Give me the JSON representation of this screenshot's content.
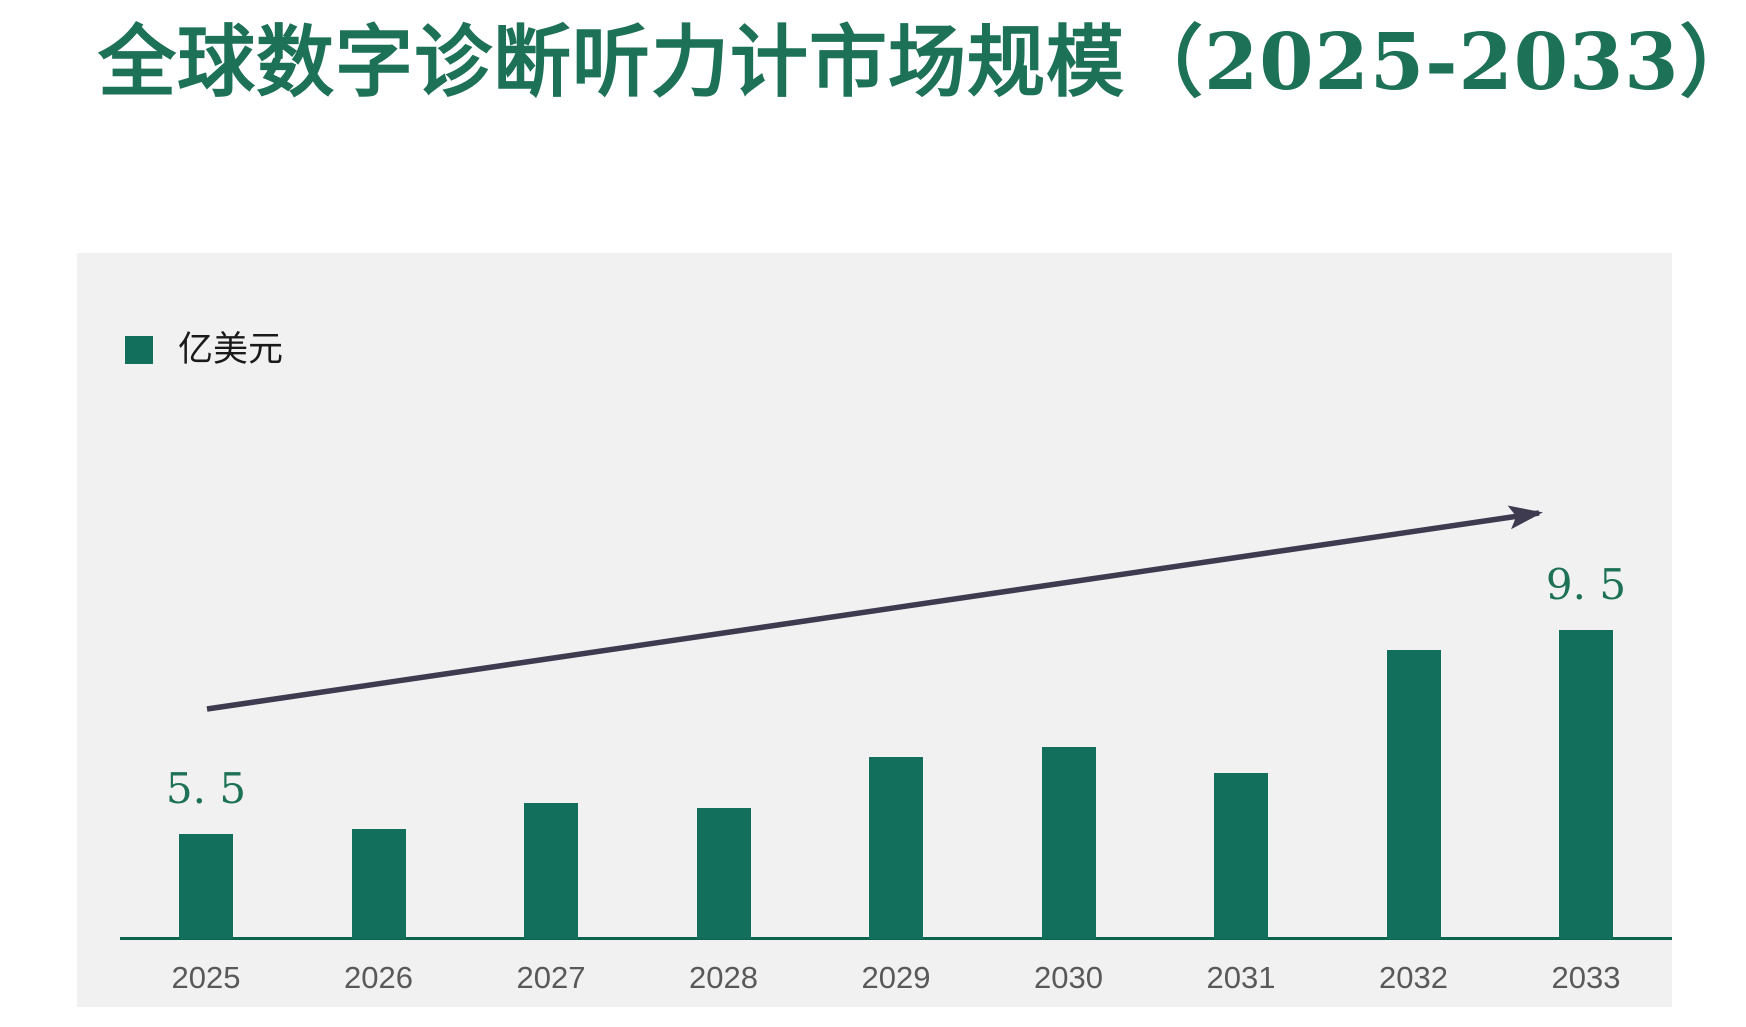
{
  "title": "全球数字诊断听力计市场规模（2025-2033）",
  "legend": {
    "label": "亿美元",
    "swatch_color": "#116f5b"
  },
  "colors": {
    "title_green": "#1d7157",
    "bar_green": "#116f5b",
    "axis_green": "#0b654e",
    "arrow": "#3e3b50",
    "plot_background": "#f1f1f1",
    "tick_gray": "#595959",
    "legend_text": "#1a1a1a",
    "page_background": "#ffffff"
  },
  "chart_data": {
    "type": "bar",
    "title": "全球数字诊断听力计市场规模（2025-2033）",
    "unit": "亿美元",
    "categories": [
      "2025",
      "2026",
      "2027",
      "2028",
      "2029",
      "2030",
      "2031",
      "2032",
      "2033"
    ],
    "values": [
      5.5,
      5.6,
      6.1,
      6.0,
      7.0,
      7.2,
      6.7,
      9.1,
      9.5
    ],
    "value_labels": [
      "5. 5",
      "",
      "",
      "",
      "",
      "",
      "",
      "",
      "9. 5"
    ],
    "labeled_points_note": "only first (5.5) and last (9.5) bars carry data labels",
    "xlabel": "",
    "ylabel": "",
    "y_axis": {
      "visible": false,
      "baseline_value": 3.44
    },
    "grid": false,
    "legend_position": "top-left",
    "annotations": [
      {
        "type": "trend-arrow",
        "direction": "up-right",
        "from_category": "2025",
        "to_category": "2033"
      }
    ]
  }
}
